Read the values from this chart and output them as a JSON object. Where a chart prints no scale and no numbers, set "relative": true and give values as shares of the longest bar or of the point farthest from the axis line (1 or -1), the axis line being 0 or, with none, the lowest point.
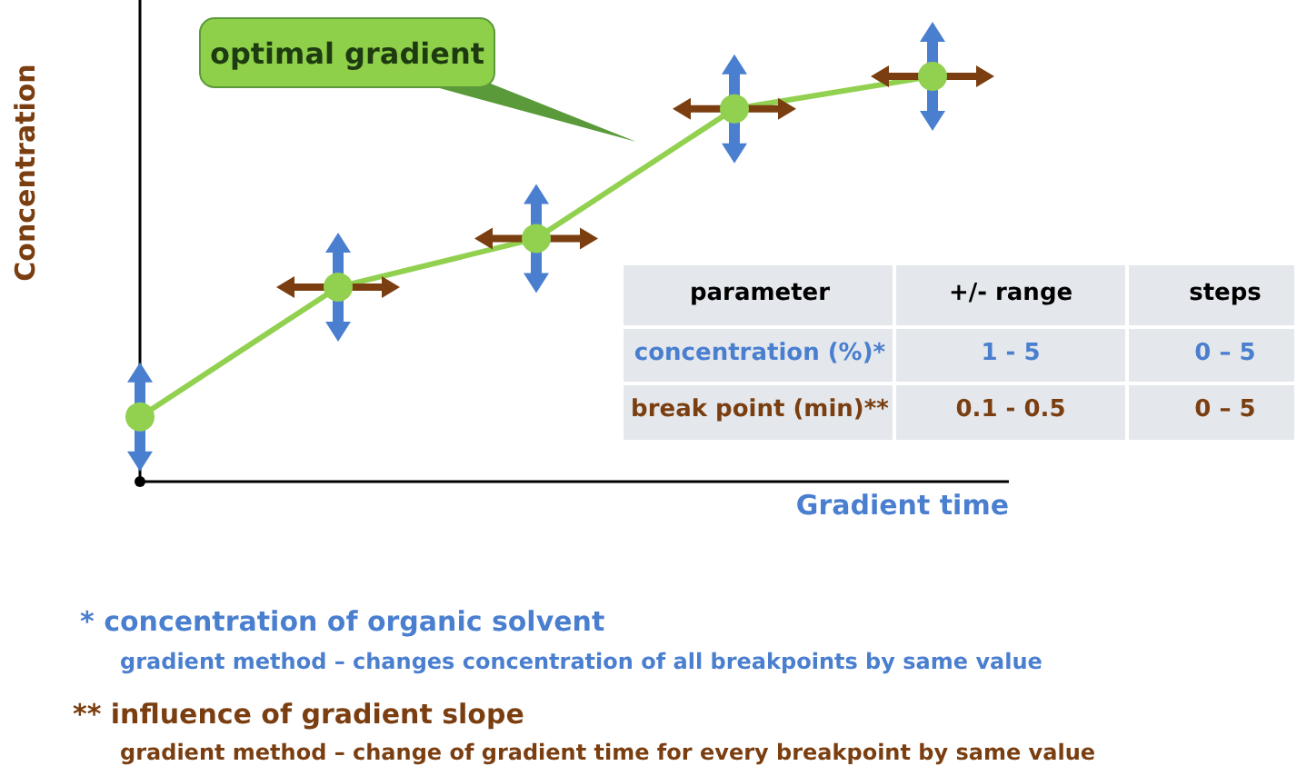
{
  "chart_data": {
    "type": "line",
    "relative": true,
    "xlabel": "Gradient time",
    "ylabel": "Concentration",
    "categories": [
      null,
      null,
      null,
      null,
      null
    ],
    "series": [
      {
        "color": "#92d050",
        "values": [
          0.16,
          0.48,
          0.6,
          0.92,
          1
        ]
      }
    ],
    "marker": "circle",
    "line_style": "solid",
    "annotations": [
      "optimal gradient",
      "parameter",
      "+/- range",
      "steps",
      "concentration (%)*",
      "1 - 5",
      "0 – 5",
      "break point (min)**",
      "0.1 - 0.5",
      "0 – 5",
      "*  concentration of organic solvent",
      "gradient method – changes concentration of all breakpoints by same value",
      "**  influence of gradient slope",
      "gradient method – change of gradient time for every breakpoint by same value"
    ]
  }
}
